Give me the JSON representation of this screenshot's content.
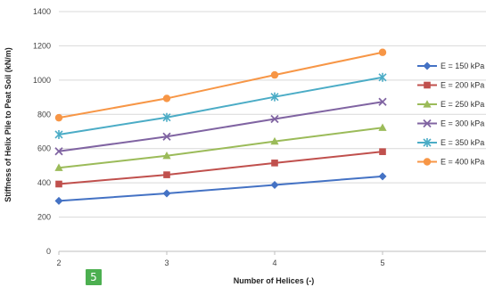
{
  "badge": {
    "label": "5"
  },
  "chart_data": {
    "type": "line",
    "xlabel": "Number of Helices (-)",
    "ylabel": "Stiffness of Helix Pile to Peat Soil (kN/m)",
    "x": [
      2,
      3,
      4,
      5
    ],
    "x_ticks": [
      "2",
      "3",
      "4",
      "5"
    ],
    "xlim": [
      2,
      6
    ],
    "ylim": [
      0,
      1400
    ],
    "y_ticks": [
      "0",
      "200",
      "400",
      "600",
      "800",
      "1000",
      "1200",
      "1400"
    ],
    "grid": "horizontal",
    "legend_position": "right",
    "series": [
      {
        "name": "E = 150 kPa",
        "values": [
          295,
          338,
          388,
          438
        ],
        "color": "#4472c4",
        "marker": "diamond"
      },
      {
        "name": "E = 200 kPa",
        "values": [
          393,
          447,
          516,
          582
        ],
        "color": "#c0504d",
        "marker": "square"
      },
      {
        "name": "E = 250 kPa",
        "values": [
          488,
          558,
          642,
          722
        ],
        "color": "#9bbb59",
        "marker": "triangle"
      },
      {
        "name": "E = 300 kPa",
        "values": [
          584,
          670,
          773,
          873
        ],
        "color": "#8064a2",
        "marker": "x"
      },
      {
        "name": "E = 350 kPa",
        "values": [
          682,
          782,
          902,
          1016
        ],
        "color": "#4bacc6",
        "marker": "star"
      },
      {
        "name": "E = 400 kPa",
        "values": [
          780,
          893,
          1030,
          1162
        ],
        "color": "#f79646",
        "marker": "circle"
      }
    ]
  }
}
